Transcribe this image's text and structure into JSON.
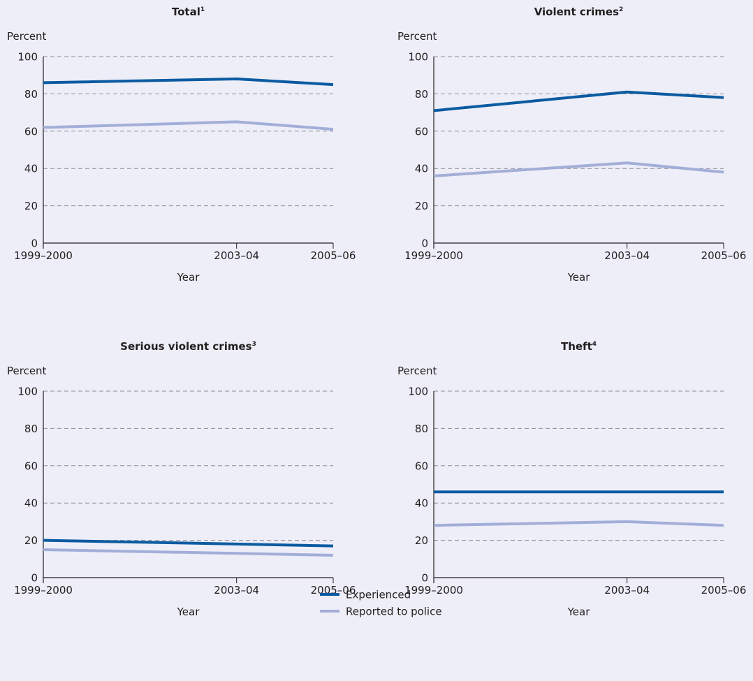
{
  "chart_data": [
    {
      "type": "line",
      "title": "Total",
      "title_superscript": "1",
      "ylabel": "Percent",
      "xlabel": "Year",
      "x": [
        1999.5,
        2003.5,
        2005.5
      ],
      "categories": [
        "1999–2000",
        "2003–04",
        "2005–06"
      ],
      "ylim": [
        0,
        100
      ],
      "yticks": [
        0,
        20,
        40,
        60,
        80,
        100
      ],
      "grid": true,
      "series": [
        {
          "name": "Experienced",
          "values": [
            86,
            88,
            85
          ]
        },
        {
          "name": "Reported to police",
          "values": [
            62,
            65,
            61
          ]
        }
      ]
    },
    {
      "type": "line",
      "title": "Violent crimes",
      "title_superscript": "2",
      "ylabel": "Percent",
      "xlabel": "Year",
      "x": [
        1999.5,
        2003.5,
        2005.5
      ],
      "categories": [
        "1999–2000",
        "2003–04",
        "2005–06"
      ],
      "ylim": [
        0,
        100
      ],
      "yticks": [
        0,
        20,
        40,
        60,
        80,
        100
      ],
      "grid": true,
      "series": [
        {
          "name": "Experienced",
          "values": [
            71,
            81,
            78
          ]
        },
        {
          "name": "Reported to police",
          "values": [
            36,
            43,
            38
          ]
        }
      ]
    },
    {
      "type": "line",
      "title": "Serious violent crimes",
      "title_superscript": "3",
      "ylabel": "Percent",
      "xlabel": "Year",
      "x": [
        1999.5,
        2003.5,
        2005.5
      ],
      "categories": [
        "1999–2000",
        "2003–04",
        "2005–06"
      ],
      "ylim": [
        0,
        100
      ],
      "yticks": [
        0,
        20,
        40,
        60,
        80,
        100
      ],
      "grid": true,
      "series": [
        {
          "name": "Experienced",
          "values": [
            20,
            18,
            17
          ]
        },
        {
          "name": "Reported to police",
          "values": [
            15,
            13,
            12
          ]
        }
      ]
    },
    {
      "type": "line",
      "title": "Theft",
      "title_superscript": "4",
      "ylabel": "Percent",
      "xlabel": "Year",
      "x": [
        1999.5,
        2003.5,
        2005.5
      ],
      "categories": [
        "1999–2000",
        "2003–04",
        "2005–06"
      ],
      "ylim": [
        0,
        100
      ],
      "yticks": [
        0,
        20,
        40,
        60,
        80,
        100
      ],
      "grid": true,
      "series": [
        {
          "name": "Experienced",
          "values": [
            46,
            46,
            46
          ]
        },
        {
          "name": "Reported to police",
          "values": [
            28,
            30,
            28
          ]
        }
      ]
    }
  ],
  "legend": {
    "placement": "bottom-center",
    "items": [
      {
        "label": "Experienced",
        "color": "#0b5ba1"
      },
      {
        "label": "Reported to police",
        "color": "#a3aed8"
      }
    ]
  },
  "colors": {
    "background": "#eeeef8",
    "experienced": "#0b5ba1",
    "reported": "#a3aed8"
  }
}
